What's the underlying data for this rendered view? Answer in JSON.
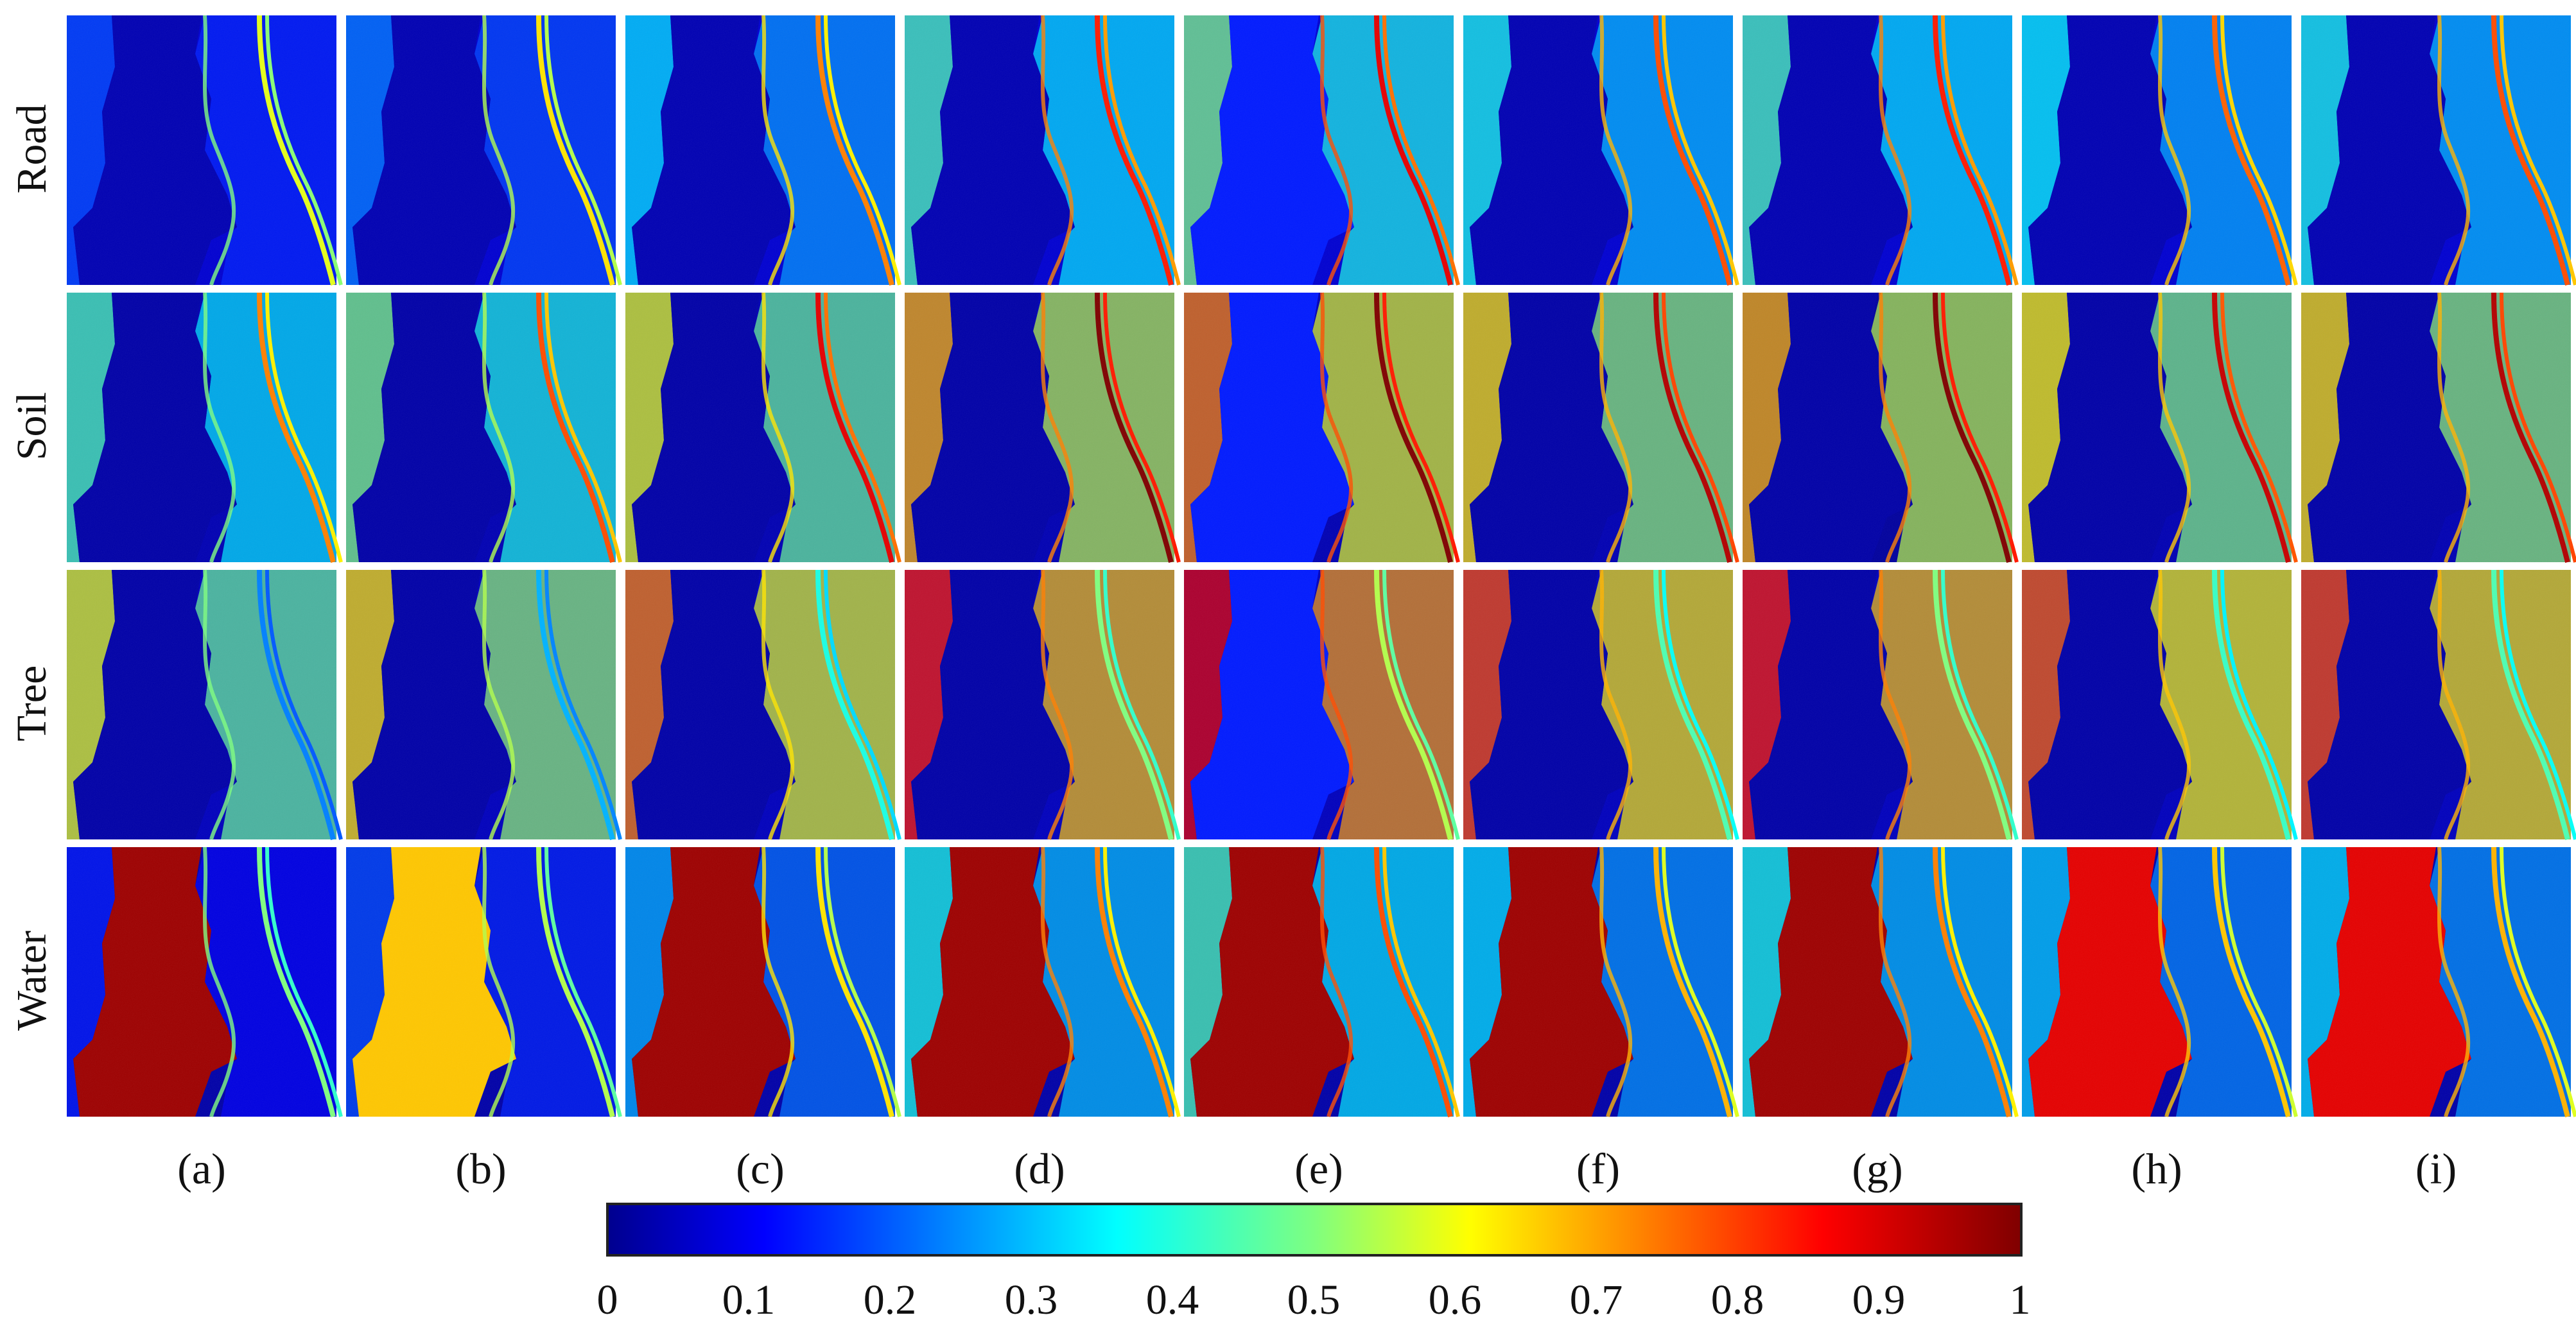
{
  "figure": {
    "row_labels": [
      "Road",
      "Soil",
      "Tree",
      "Water"
    ],
    "col_labels": [
      "(a)",
      "(b)",
      "(c)",
      "(d)",
      "(e)",
      "(f)",
      "(g)",
      "(h)",
      "(i)"
    ],
    "colorbar": {
      "colormap": "jet",
      "min": 0,
      "max": 1,
      "tick_labels": [
        "0",
        "0.1",
        "0.2",
        "0.3",
        "0.4",
        "0.5",
        "0.6",
        "0.7",
        "0.8",
        "0.9",
        "1"
      ]
    },
    "colors": {
      "low": "#00008f",
      "mid": "#7fff7f",
      "high": "#800000",
      "background": "#ffffff"
    }
  }
}
